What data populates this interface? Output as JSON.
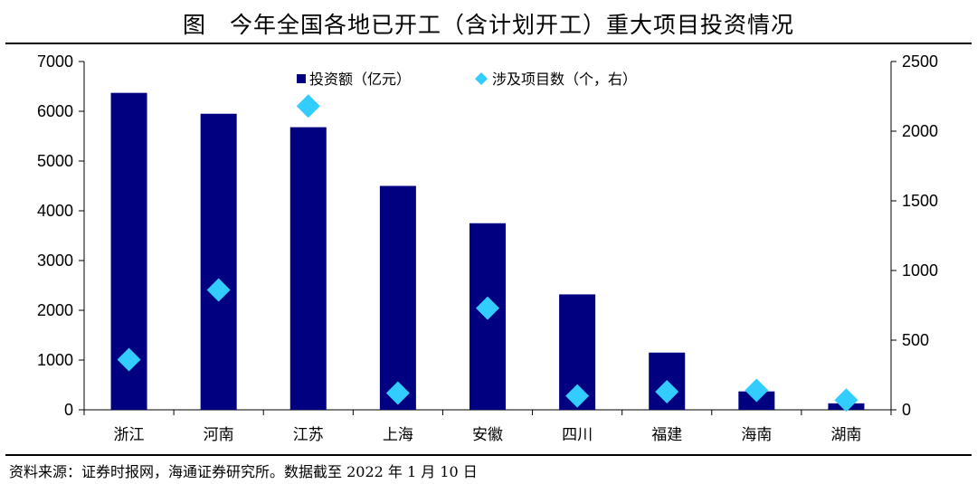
{
  "header": {
    "title": "图　今年全国各地已开工（含计划开工）重大项目投资情况"
  },
  "footer": {
    "source": "资料来源：证券时报网，海通证券研究所。数据截至 2022 年 1 月 10 日"
  },
  "chart_data": {
    "type": "bar",
    "categories": [
      "浙江",
      "河南",
      "江苏",
      "上海",
      "安徽",
      "四川",
      "福建",
      "海南",
      "湖南"
    ],
    "series": [
      {
        "name": "投资额（亿元）",
        "type": "bar",
        "axis": "left",
        "color": "#000080",
        "values": [
          6370,
          5950,
          5680,
          4500,
          3750,
          2320,
          1150,
          370,
          130
        ]
      },
      {
        "name": "涉及项目数（个，右）",
        "type": "scatter",
        "marker": "diamond",
        "axis": "right",
        "color": "#33ccff",
        "values": [
          360,
          860,
          2180,
          120,
          730,
          100,
          130,
          140,
          70
        ]
      }
    ],
    "y_left": {
      "min": 0,
      "max": 7000,
      "ticks": [
        0,
        1000,
        2000,
        3000,
        4000,
        5000,
        6000,
        7000
      ]
    },
    "y_right": {
      "min": 0,
      "max": 2500,
      "ticks": [
        0,
        500,
        1000,
        1500,
        2000,
        2500
      ]
    },
    "legend_position": "top-center",
    "grid": false
  }
}
